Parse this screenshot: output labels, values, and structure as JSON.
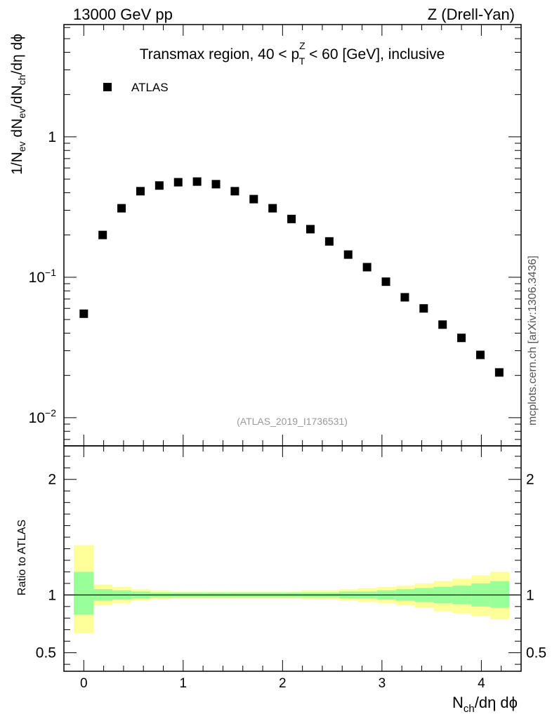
{
  "header": {
    "left": "13000 GeV pp",
    "right": "Z (Drell-Yan)"
  },
  "side_label": "mcplots.cern.ch [arXiv:1306.3436]",
  "chart_data": [
    {
      "type": "scatter",
      "scale": "log",
      "title": {
        "part1": "Transmax region, 40 < p",
        "sup": "Z",
        "sub": "T",
        "part2": " < 60 [GeV], inclusive"
      },
      "ylabel": {
        "t1": "1/N",
        "s1": "ev",
        "t2": " dN",
        "s2": "ev",
        "t3": "/dN",
        "s3": "ch",
        "t4": "/dη dϕ"
      },
      "xlim": [
        -0.2,
        4.4
      ],
      "ylim": [
        0.0063,
        6.3
      ],
      "yticks": [
        {
          "value": 0.01,
          "base": "10",
          "exp": "−2"
        },
        {
          "value": 0.1,
          "base": "10",
          "exp": "−1"
        },
        {
          "value": 1,
          "base": "1",
          "exp": ""
        }
      ],
      "legend": {
        "position": "top-left",
        "label": "ATLAS"
      },
      "watermark": "(ATLAS_2019_I1736531)",
      "series": [
        {
          "name": "ATLAS",
          "x": [
            0.0,
            0.19,
            0.38,
            0.57,
            0.76,
            0.95,
            1.14,
            1.33,
            1.52,
            1.71,
            1.9,
            2.09,
            2.28,
            2.47,
            2.66,
            2.85,
            3.04,
            3.23,
            3.42,
            3.61,
            3.8,
            3.99,
            4.18
          ],
          "y": [
            0.055,
            0.2,
            0.31,
            0.41,
            0.45,
            0.475,
            0.48,
            0.46,
            0.41,
            0.36,
            0.31,
            0.26,
            0.22,
            0.18,
            0.145,
            0.118,
            0.093,
            0.072,
            0.06,
            0.046,
            0.037,
            0.028,
            0.021
          ]
        }
      ]
    },
    {
      "type": "area",
      "ylabel": "Ratio to ATLAS",
      "xlabel": {
        "t1": "N",
        "s1": "ch",
        "t2": "/dη dϕ"
      },
      "xlim": [
        -0.2,
        4.4
      ],
      "ylim": [
        0.34,
        2.29
      ],
      "xticks": [
        0,
        1,
        2,
        3,
        4
      ],
      "xtick_labels": [
        "0",
        "1",
        "2",
        "3",
        "4"
      ],
      "yticks": [
        0.5,
        1,
        2
      ],
      "ytick_labels": [
        "0.5",
        "1",
        "2"
      ],
      "reference_line": 1,
      "bins": [
        -0.1,
        0.1,
        0.29,
        0.48,
        0.67,
        0.86,
        1.05,
        1.24,
        1.43,
        1.62,
        1.81,
        2.0,
        2.19,
        2.38,
        2.57,
        2.76,
        2.95,
        3.14,
        3.33,
        3.52,
        3.71,
        3.9,
        4.09,
        4.28
      ],
      "yellow_band": {
        "upper": [
          1.43,
          1.09,
          1.07,
          1.05,
          1.04,
          1.03,
          1.03,
          1.03,
          1.03,
          1.03,
          1.03,
          1.03,
          1.04,
          1.04,
          1.05,
          1.06,
          1.07,
          1.08,
          1.1,
          1.12,
          1.14,
          1.17,
          1.2
        ],
        "lower": [
          0.67,
          0.91,
          0.93,
          0.95,
          0.96,
          0.97,
          0.97,
          0.97,
          0.97,
          0.97,
          0.97,
          0.97,
          0.96,
          0.96,
          0.95,
          0.94,
          0.93,
          0.91,
          0.89,
          0.86,
          0.84,
          0.82,
          0.79
        ]
      },
      "green_band": {
        "upper": [
          1.2,
          1.05,
          1.04,
          1.03,
          1.02,
          1.02,
          1.02,
          1.02,
          1.02,
          1.02,
          1.02,
          1.02,
          1.02,
          1.02,
          1.03,
          1.03,
          1.04,
          1.05,
          1.06,
          1.07,
          1.08,
          1.1,
          1.12
        ],
        "lower": [
          0.83,
          0.95,
          0.96,
          0.97,
          0.98,
          0.98,
          0.98,
          0.98,
          0.98,
          0.98,
          0.98,
          0.98,
          0.98,
          0.98,
          0.97,
          0.97,
          0.96,
          0.95,
          0.94,
          0.93,
          0.92,
          0.9,
          0.89
        ]
      },
      "colors": {
        "yellow": "#ffff99",
        "green": "#99ff99"
      }
    }
  ]
}
